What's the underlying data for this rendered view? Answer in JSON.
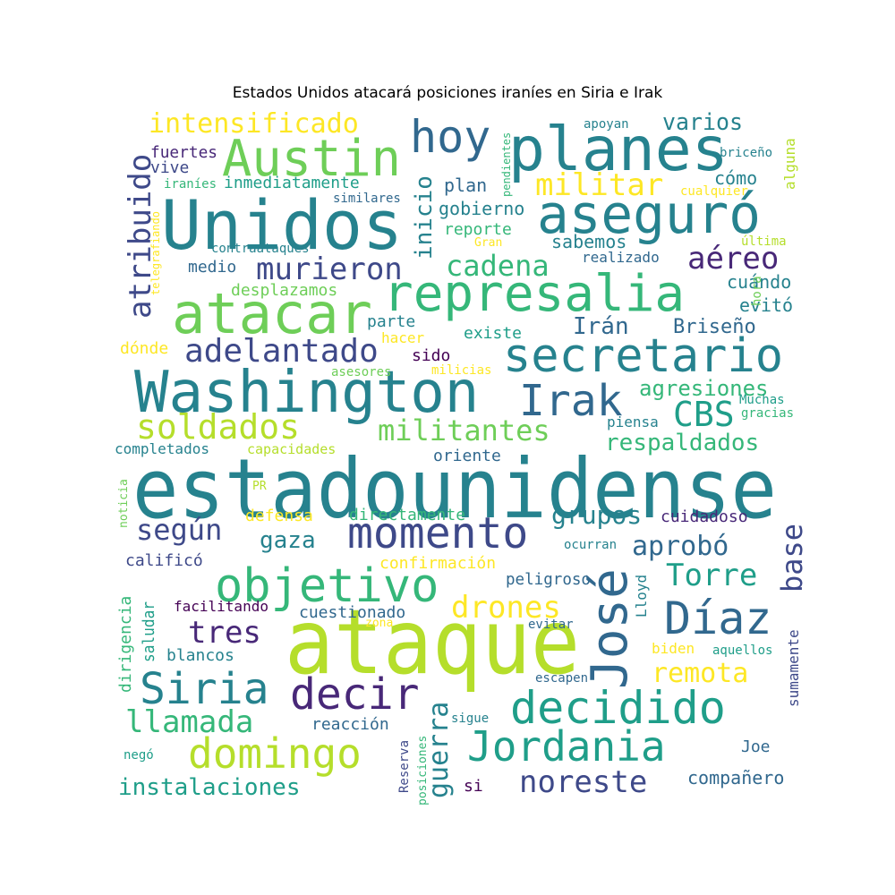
{
  "title": "Estados Unidos atacará posiciones iraníes en Siria e Irak",
  "palette": {
    "yellow": "#fde725",
    "lime": "#b5de2b",
    "green": "#6ece58",
    "teal_green": "#35b779",
    "teal": "#1f9e89",
    "blue_teal": "#26828e",
    "blue": "#31688e",
    "indigo": "#3e4989",
    "purple": "#482878",
    "dark": "#440154"
  },
  "words": [
    {
      "text": "estadounidense",
      "color": "#26828e"
    },
    {
      "text": "ataque",
      "color": "#b5de2b"
    },
    {
      "text": "Washington",
      "color": "#26828e"
    },
    {
      "text": "Unidos",
      "color": "#26828e"
    },
    {
      "text": "represalia",
      "color": "#35b779"
    },
    {
      "text": "planes",
      "color": "#26828e"
    },
    {
      "text": "aseguró",
      "color": "#26828e"
    },
    {
      "text": "atacar",
      "color": "#6ece58"
    },
    {
      "text": "secretario",
      "color": "#26828e"
    },
    {
      "text": "Austin",
      "color": "#6ece58"
    },
    {
      "text": "objetivo",
      "color": "#35b779"
    },
    {
      "text": "momento",
      "color": "#3e4989"
    },
    {
      "text": "José",
      "color": "#31688e"
    },
    {
      "text": "Díaz",
      "color": "#31688e"
    },
    {
      "text": "decidido",
      "color": "#1f9e89"
    },
    {
      "text": "Jordania",
      "color": "#1f9e89"
    },
    {
      "text": "domingo",
      "color": "#b5de2b"
    },
    {
      "text": "Siria",
      "color": "#26828e"
    },
    {
      "text": "decir",
      "color": "#482878"
    },
    {
      "text": "Irak",
      "color": "#31688e"
    },
    {
      "text": "hoy",
      "color": "#31688e"
    },
    {
      "text": "murieron",
      "color": "#3e4989"
    },
    {
      "text": "adelantado",
      "color": "#3e4989"
    },
    {
      "text": "soldados",
      "color": "#b5de2b"
    },
    {
      "text": "militantes",
      "color": "#6ece58"
    },
    {
      "text": "cadena",
      "color": "#35b779"
    },
    {
      "text": "atribuido",
      "color": "#3e4989"
    },
    {
      "text": "intensificado",
      "color": "#fde725"
    },
    {
      "text": "militar",
      "color": "#fde725"
    },
    {
      "text": "aéreo",
      "color": "#482878"
    },
    {
      "text": "CBS",
      "color": "#1f9e89"
    },
    {
      "text": "agresiones",
      "color": "#35b779"
    },
    {
      "text": "respaldados",
      "color": "#35b779"
    },
    {
      "text": "aprobó",
      "color": "#31688e"
    },
    {
      "text": "Torre",
      "color": "#1f9e89"
    },
    {
      "text": "base",
      "color": "#3e4989"
    },
    {
      "text": "drones",
      "color": "#fde725"
    },
    {
      "text": "remota",
      "color": "#fde725"
    },
    {
      "text": "grupos",
      "color": "#26828e"
    },
    {
      "text": "según",
      "color": "#3e4989"
    },
    {
      "text": "gaza",
      "color": "#26828e"
    },
    {
      "text": "tres",
      "color": "#482878"
    },
    {
      "text": "llamada",
      "color": "#35b779"
    },
    {
      "text": "noreste",
      "color": "#3e4989"
    },
    {
      "text": "instalaciones",
      "color": "#1f9e89"
    },
    {
      "text": "guerra",
      "color": "#26828e"
    },
    {
      "text": "varios",
      "color": "#26828e"
    },
    {
      "text": "inicio",
      "color": "#26828e"
    },
    {
      "text": "Irán",
      "color": "#31688e"
    },
    {
      "text": "Briseño",
      "color": "#31688e"
    },
    {
      "text": "evitó",
      "color": "#26828e"
    },
    {
      "text": "cuándo",
      "color": "#26828e"
    },
    {
      "text": "cómo",
      "color": "#26828e"
    },
    {
      "text": "plan",
      "color": "#31688e"
    },
    {
      "text": "gobierno",
      "color": "#26828e"
    },
    {
      "text": "reporte",
      "color": "#35b779"
    },
    {
      "text": "sabemos",
      "color": "#26828e"
    },
    {
      "text": "realizado",
      "color": "#31688e"
    },
    {
      "text": "medio",
      "color": "#31688e"
    },
    {
      "text": "desplazamos",
      "color": "#6ece58"
    },
    {
      "text": "parte",
      "color": "#26828e"
    },
    {
      "text": "hacer",
      "color": "#fde725"
    },
    {
      "text": "existe",
      "color": "#1f9e89"
    },
    {
      "text": "sido",
      "color": "#440154"
    },
    {
      "text": "dónde",
      "color": "#fde725"
    },
    {
      "text": "asesores",
      "color": "#6ece58"
    },
    {
      "text": "milicias",
      "color": "#fde725"
    },
    {
      "text": "inmediatamente",
      "color": "#1f9e89"
    },
    {
      "text": "fuertes",
      "color": "#482878"
    },
    {
      "text": "vive",
      "color": "#3e4989"
    },
    {
      "text": "iraníes",
      "color": "#35b779"
    },
    {
      "text": "similares",
      "color": "#31688e"
    },
    {
      "text": "contraataques",
      "color": "#26828e"
    },
    {
      "text": "telegrafiando",
      "color": "#fde725"
    },
    {
      "text": "pendientes",
      "color": "#35b779"
    },
    {
      "text": "Gran",
      "color": "#fde725"
    },
    {
      "text": "apoyan",
      "color": "#26828e"
    },
    {
      "text": "briceño",
      "color": "#26828e"
    },
    {
      "text": "alguna",
      "color": "#b5de2b"
    },
    {
      "text": "cualquier",
      "color": "#fde725"
    },
    {
      "text": "última",
      "color": "#b5de2b"
    },
    {
      "text": "hora",
      "color": "#6ece58"
    },
    {
      "text": "Muchas",
      "color": "#1f9e89"
    },
    {
      "text": "gracias",
      "color": "#35b779"
    },
    {
      "text": "piensa",
      "color": "#26828e"
    },
    {
      "text": "oriente",
      "color": "#31688e"
    },
    {
      "text": "completados",
      "color": "#26828e"
    },
    {
      "text": "capacidades",
      "color": "#b5de2b"
    },
    {
      "text": "noticia",
      "color": "#6ece58"
    },
    {
      "text": "PR",
      "color": "#b5de2b"
    },
    {
      "text": "defensa",
      "color": "#fde725"
    },
    {
      "text": "directamente",
      "color": "#35b779"
    },
    {
      "text": "cuidadoso",
      "color": "#482878"
    },
    {
      "text": "ocurran",
      "color": "#26828e"
    },
    {
      "text": "calificó",
      "color": "#3e4989"
    },
    {
      "text": "confirmación",
      "color": "#fde725"
    },
    {
      "text": "peligroso",
      "color": "#31688e"
    },
    {
      "text": "Lloyd",
      "color": "#26828e"
    },
    {
      "text": "dirigencia",
      "color": "#35b779"
    },
    {
      "text": "saludar",
      "color": "#1f9e89"
    },
    {
      "text": "facilitando",
      "color": "#440154"
    },
    {
      "text": "cuestionado",
      "color": "#31688e"
    },
    {
      "text": "zona",
      "color": "#fde725"
    },
    {
      "text": "evitar",
      "color": "#31688e"
    },
    {
      "text": "blancos",
      "color": "#26828e"
    },
    {
      "text": "biden",
      "color": "#fde725"
    },
    {
      "text": "aquellos",
      "color": "#1f9e89"
    },
    {
      "text": "sumamente",
      "color": "#3e4989"
    },
    {
      "text": "escapen",
      "color": "#31688e"
    },
    {
      "text": "reacción",
      "color": "#31688e"
    },
    {
      "text": "sigue",
      "color": "#26828e"
    },
    {
      "text": "Reserva",
      "color": "#3e4989"
    },
    {
      "text": "posiciones",
      "color": "#35b779"
    },
    {
      "text": "negó",
      "color": "#1f9e89"
    },
    {
      "text": "si",
      "color": "#440154"
    },
    {
      "text": "Joe",
      "color": "#31688e"
    },
    {
      "text": "compañero",
      "color": "#31688e"
    }
  ]
}
